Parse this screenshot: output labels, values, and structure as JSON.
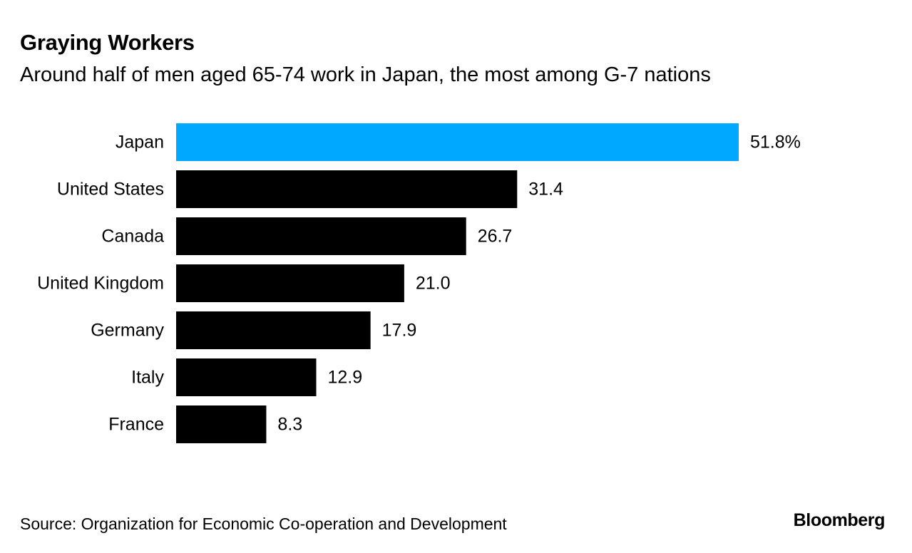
{
  "title": "Graying Workers",
  "subtitle": "Around half of men aged 65-74 work in Japan, the most among G-7 nations",
  "source": "Source: Organization for Economic Co-operation and Development",
  "logo_text": "Bloomberg",
  "colors": {
    "highlight": "#00a8ff",
    "bar": "#000000",
    "text": "#000000",
    "background": "#ffffff"
  },
  "chart_data": {
    "type": "bar",
    "orientation": "horizontal",
    "categories": [
      "Japan",
      "United States",
      "Canada",
      "United Kingdom",
      "Germany",
      "Italy",
      "France"
    ],
    "values": [
      51.8,
      31.4,
      26.7,
      21.0,
      17.9,
      12.9,
      8.3
    ],
    "value_labels": [
      "51.8%",
      "31.4",
      "26.7",
      "21.0",
      "17.9",
      "12.9",
      "8.3"
    ],
    "highlighted_category": "Japan",
    "unit": "%",
    "title": "Graying Workers",
    "subtitle": "Around half of men aged 65-74 work in Japan, the most among G-7 nations",
    "xlabel": "",
    "ylabel": "",
    "xlim": [
      0,
      51.8
    ],
    "grid": false,
    "legend": "none"
  }
}
